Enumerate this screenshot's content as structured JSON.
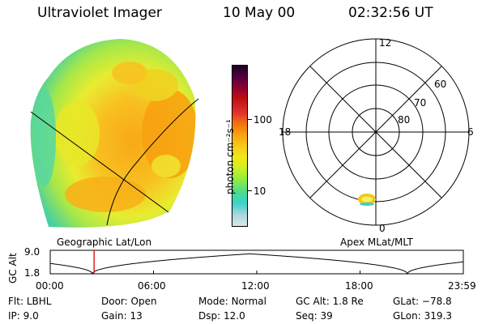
{
  "header": {
    "instrument": "Ultraviolet Imager",
    "date": "10 May 00",
    "time": "02:32:56 UT"
  },
  "colorbar": {
    "unit_label": "photon cm⁻²s⁻¹",
    "ticks": [
      {
        "value": 100,
        "label": "100"
      },
      {
        "value": 10,
        "label": "10"
      }
    ],
    "colors": [
      "#d8e8ec",
      "#a8d8dc",
      "#40d0cc",
      "#48dc90",
      "#90ec40",
      "#ccf020",
      "#f0e818",
      "#f8c818",
      "#f8a010",
      "#f07010",
      "#e03030",
      "#c01010",
      "#900030",
      "#500040",
      "#200020"
    ]
  },
  "left_panel": {
    "caption": "Geographic Lat/Lon"
  },
  "right_panel": {
    "caption": "Apex MLat/MLT",
    "mlt_labels": {
      "top": "12",
      "left": "18",
      "right": "6",
      "bottom": "0"
    },
    "lat_labels": [
      "60",
      "70",
      "80"
    ]
  },
  "altitude_plot": {
    "ylabel": "GC Alt",
    "yticks": [
      "9.0",
      "1.8"
    ],
    "xticks": [
      "00:00",
      "06:00",
      "12:00",
      "18:00",
      "23:59"
    ],
    "current_time_hours": 2.55,
    "marker_color": "#e02020"
  },
  "info": {
    "flt_label": "Flt:",
    "flt_value": "LBHL",
    "ip_label": "IP:",
    "ip_value": "9.0",
    "door_label": "Door:",
    "door_value": "Open",
    "gain_label": "Gain:",
    "gain_value": "13",
    "mode_label": "Mode:",
    "mode_value": "Normal",
    "dsp_label": "Dsp:",
    "dsp_value": "12.0",
    "gcalt_label": "GC Alt:",
    "gcalt_value": "1.8 Re",
    "seq_label": "Seq:",
    "seq_value": "39",
    "glat_label": "GLat:",
    "glat_value": "−78.8",
    "glon_label": "GLon:",
    "glon_value": "319.3"
  }
}
